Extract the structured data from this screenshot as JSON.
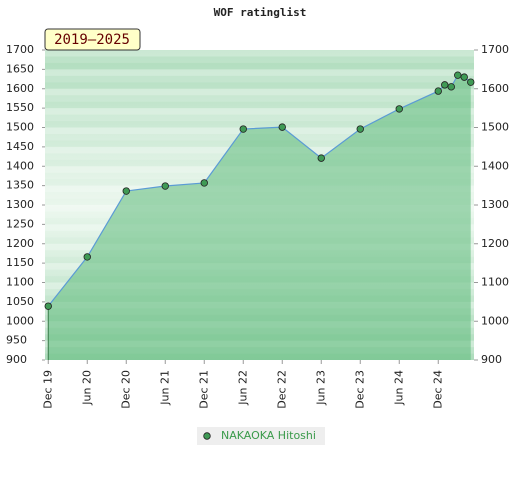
{
  "chart_data": {
    "type": "line",
    "title": "WOF ratinglist",
    "badge": "2019–2025",
    "x": [
      0,
      6,
      12,
      18,
      24,
      30,
      36,
      42,
      48,
      54,
      60,
      61,
      62,
      63,
      64,
      65
    ],
    "xlim": [
      -0.5,
      65.5
    ],
    "xticks": [
      {
        "value": 0,
        "label": "Dec 19"
      },
      {
        "value": 6,
        "label": "Jun 20"
      },
      {
        "value": 12,
        "label": "Dec 20"
      },
      {
        "value": 18,
        "label": "Jun 21"
      },
      {
        "value": 24,
        "label": "Dec 21"
      },
      {
        "value": 30,
        "label": "Jun 22"
      },
      {
        "value": 36,
        "label": "Dec 22"
      },
      {
        "value": 42,
        "label": "Jun 23"
      },
      {
        "value": 48,
        "label": "Dec 23"
      },
      {
        "value": 54,
        "label": "Jun 24"
      },
      {
        "value": 60,
        "label": "Dec 24"
      }
    ],
    "series": [
      {
        "name": "NAKAOKA Hitoshi",
        "color": "#5b9bd5",
        "marker_color": "#3f9a55",
        "values": [
          1039,
          1166,
          1336,
          1349,
          1357,
          1496,
          1501,
          1421,
          1496,
          1548,
          1594,
          1610,
          1605,
          1635,
          1630,
          1617
        ]
      }
    ],
    "ylim": [
      900,
      1700
    ],
    "yticks": [
      900,
      950,
      1000,
      1050,
      1100,
      1150,
      1200,
      1250,
      1300,
      1350,
      1400,
      1450,
      1500,
      1550,
      1600,
      1650,
      1700
    ],
    "y2lim": [
      900,
      1700
    ],
    "y2ticks": [
      900,
      1000,
      1100,
      1200,
      1300,
      1400,
      1500,
      1600,
      1700
    ],
    "grid": false,
    "legend": "bottom"
  }
}
